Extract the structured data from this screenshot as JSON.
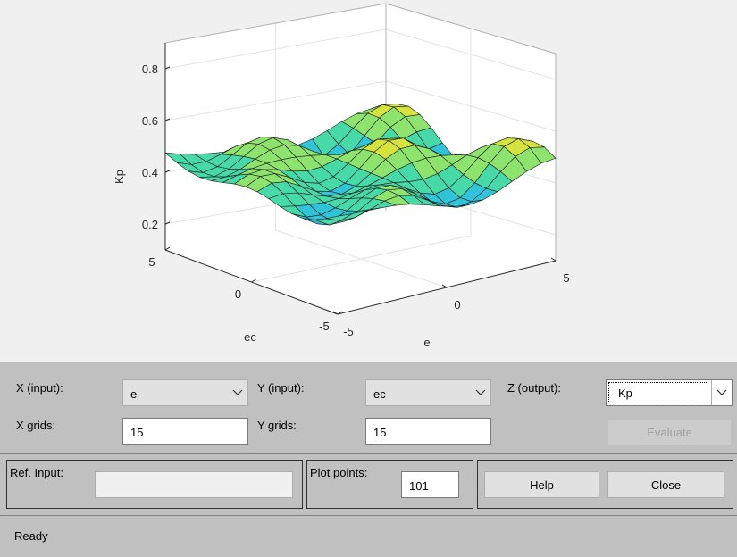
{
  "plot": {
    "zlabel": "Kp",
    "xlabel": "e",
    "ylabel": "ec",
    "z_ticks": [
      "0.2",
      "0.4",
      "0.6",
      "0.8"
    ],
    "x_ticks": [
      "-5",
      "0",
      "5"
    ],
    "y_ticks": [
      "-5",
      "0",
      "5"
    ],
    "colormap": [
      "#2a9df4",
      "#31c4d8",
      "#48d9a8",
      "#8ee26e",
      "#d6e23e",
      "#f2d92b"
    ],
    "surface_rows": 15,
    "surface_cols": 15,
    "z_range": [
      0.1,
      0.9
    ]
  },
  "controls": {
    "x_input_label": "X (input):",
    "x_input_value": "e",
    "y_input_label": "Y (input):",
    "y_input_value": "ec",
    "z_output_label": "Z (output):",
    "z_output_value": "Kp",
    "x_grids_label": "X grids:",
    "x_grids_value": "15",
    "y_grids_label": "Y grids:",
    "y_grids_value": "15",
    "evaluate_label": "Evaluate",
    "ref_input_label": "Ref. Input:",
    "ref_input_value": "",
    "plot_points_label": "Plot points:",
    "plot_points_value": "101",
    "help_label": "Help",
    "close_label": "Close"
  },
  "status": {
    "text": "Ready"
  }
}
